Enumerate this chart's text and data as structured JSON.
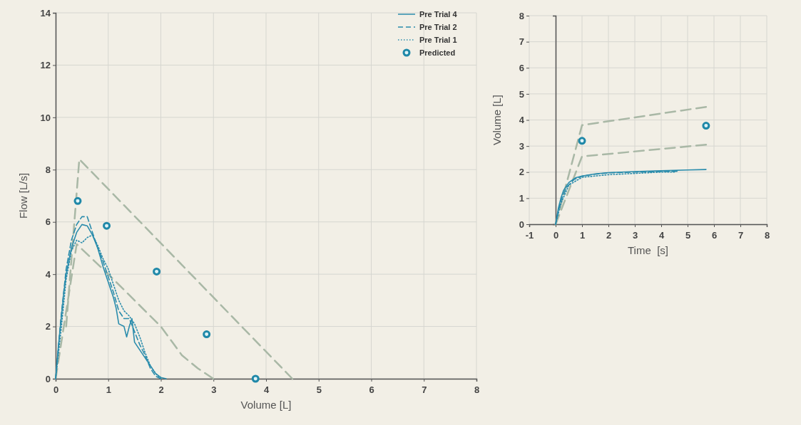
{
  "chart_data": [
    {
      "type": "line",
      "xlabel": "Volume [L]",
      "ylabel": "Flow [L/s]",
      "xlim": [
        0,
        8
      ],
      "xticks": [
        0,
        1,
        2,
        3,
        4,
        5,
        6,
        7,
        8
      ],
      "ylim": [
        0,
        14
      ],
      "yticks": [
        0,
        2,
        4,
        6,
        8,
        10,
        12,
        14
      ],
      "grid": true,
      "legend": "top right",
      "series": [
        {
          "color": "#a9b8a6",
          "line_style": "dashed",
          "x": [
            0.2,
            0.45,
            4.5
          ],
          "values": [
            2,
            8.4,
            0
          ]
        },
        {
          "color": "#a9b8a6",
          "line_style": "dashed",
          "x": [
            0,
            0.4,
            1,
            1.5,
            2,
            2.4,
            2.7,
            3
          ],
          "values": [
            0,
            5.15,
            4,
            3,
            2,
            0.9,
            0.4,
            0
          ]
        },
        {
          "name": "Pre Trial 4",
          "color": "#2a8cac",
          "line_style": "solid",
          "x": [
            0,
            0.05,
            0.1,
            0.15,
            0.2,
            0.3,
            0.4,
            0.5,
            0.6,
            0.7,
            0.8,
            0.9,
            1.0,
            1.1,
            1.15,
            1.2,
            1.3,
            1.35,
            1.4,
            1.45,
            1.5,
            1.6,
            1.7,
            1.8,
            1.9,
            2.0,
            2.1
          ],
          "values": [
            0,
            1.2,
            2.2,
            3.2,
            4.0,
            5.0,
            5.6,
            5.9,
            5.85,
            5.5,
            5.0,
            4.3,
            3.7,
            3.1,
            2.7,
            2.1,
            2.0,
            1.6,
            2.0,
            2.3,
            1.4,
            1.1,
            0.8,
            0.5,
            0.2,
            0.05,
            0
          ]
        },
        {
          "name": "Pre Trial 2",
          "color": "#2a8cac",
          "line_style": "dashed",
          "x": [
            0,
            0.1,
            0.2,
            0.3,
            0.4,
            0.5,
            0.6,
            0.7,
            0.8,
            0.9,
            1.0,
            1.1,
            1.2,
            1.3,
            1.4,
            1.5,
            1.6,
            1.7,
            1.8,
            1.9,
            2.0
          ],
          "values": [
            0,
            2.3,
            4.2,
            5.3,
            5.9,
            6.2,
            6.2,
            5.6,
            5.0,
            4.5,
            3.9,
            3.3,
            2.6,
            2.3,
            2.3,
            1.8,
            1.3,
            0.9,
            0.4,
            0.1,
            0
          ]
        },
        {
          "name": "Pre Trial 1",
          "color": "#2a8cac",
          "line_style": "dotted",
          "x": [
            0,
            0.1,
            0.2,
            0.3,
            0.4,
            0.5,
            0.6,
            0.7,
            0.8,
            0.9,
            1.0,
            1.1,
            1.2,
            1.3,
            1.4,
            1.5,
            1.6,
            1.7,
            1.8,
            1.9,
            2.0
          ],
          "values": [
            0,
            1.8,
            3.8,
            4.9,
            5.3,
            5.2,
            5.4,
            5.5,
            5.1,
            4.6,
            4.2,
            3.6,
            3.0,
            2.6,
            2.4,
            2.1,
            1.6,
            1.0,
            0.5,
            0.2,
            0
          ]
        },
        {
          "name": "Predicted",
          "type": "scatter",
          "color": "#1f88a8",
          "marker": "circle",
          "x": [
            0.42,
            0.97,
            1.92,
            2.87,
            3.8
          ],
          "values": [
            6.8,
            5.85,
            4.1,
            1.7,
            0
          ]
        }
      ]
    },
    {
      "type": "line",
      "xlabel": "Time  [s]",
      "ylabel": "Volume [L]",
      "xlim": [
        -1,
        8
      ],
      "xticks": [
        -1,
        0,
        1,
        2,
        3,
        4,
        5,
        6,
        7,
        8
      ],
      "ylim": [
        0,
        8
      ],
      "yticks": [
        0,
        1,
        2,
        3,
        4,
        5,
        6,
        7,
        8
      ],
      "grid": true,
      "series": [
        {
          "color": "#a9b8a6",
          "line_style": "dashed",
          "x": [
            0,
            1,
            5.7
          ],
          "values": [
            0,
            3.8,
            4.5
          ]
        },
        {
          "color": "#a9b8a6",
          "line_style": "dashed",
          "x": [
            0,
            1,
            5.7
          ],
          "values": [
            0,
            2.6,
            3.05
          ]
        },
        {
          "color": "#2a8cac",
          "line_style": "solid",
          "x": [
            0,
            0.1,
            0.2,
            0.3,
            0.5,
            0.75,
            1,
            1.5,
            2,
            3,
            4,
            5,
            5.7
          ],
          "values": [
            0,
            0.6,
            1.0,
            1.3,
            1.6,
            1.78,
            1.85,
            1.93,
            1.98,
            2.02,
            2.05,
            2.08,
            2.1
          ]
        },
        {
          "color": "#2a8cac",
          "line_style": "dashed",
          "x": [
            0,
            0.1,
            0.2,
            0.4,
            0.7,
            1,
            1.5,
            2,
            3,
            4,
            4.6
          ],
          "values": [
            0,
            0.5,
            0.9,
            1.4,
            1.72,
            1.84,
            1.92,
            1.97,
            2.0,
            2.02,
            2.03
          ]
        },
        {
          "color": "#2a8cac",
          "line_style": "dotted",
          "x": [
            0,
            0.2,
            0.5,
            1,
            2,
            3,
            4,
            4.5
          ],
          "values": [
            0,
            0.8,
            1.5,
            1.8,
            1.9,
            1.95,
            2.0,
            2.0
          ]
        },
        {
          "type": "scatter",
          "color": "#1f88a8",
          "marker": "circle",
          "x": [
            1,
            5.7
          ],
          "values": [
            3.2,
            3.78
          ]
        }
      ]
    }
  ]
}
